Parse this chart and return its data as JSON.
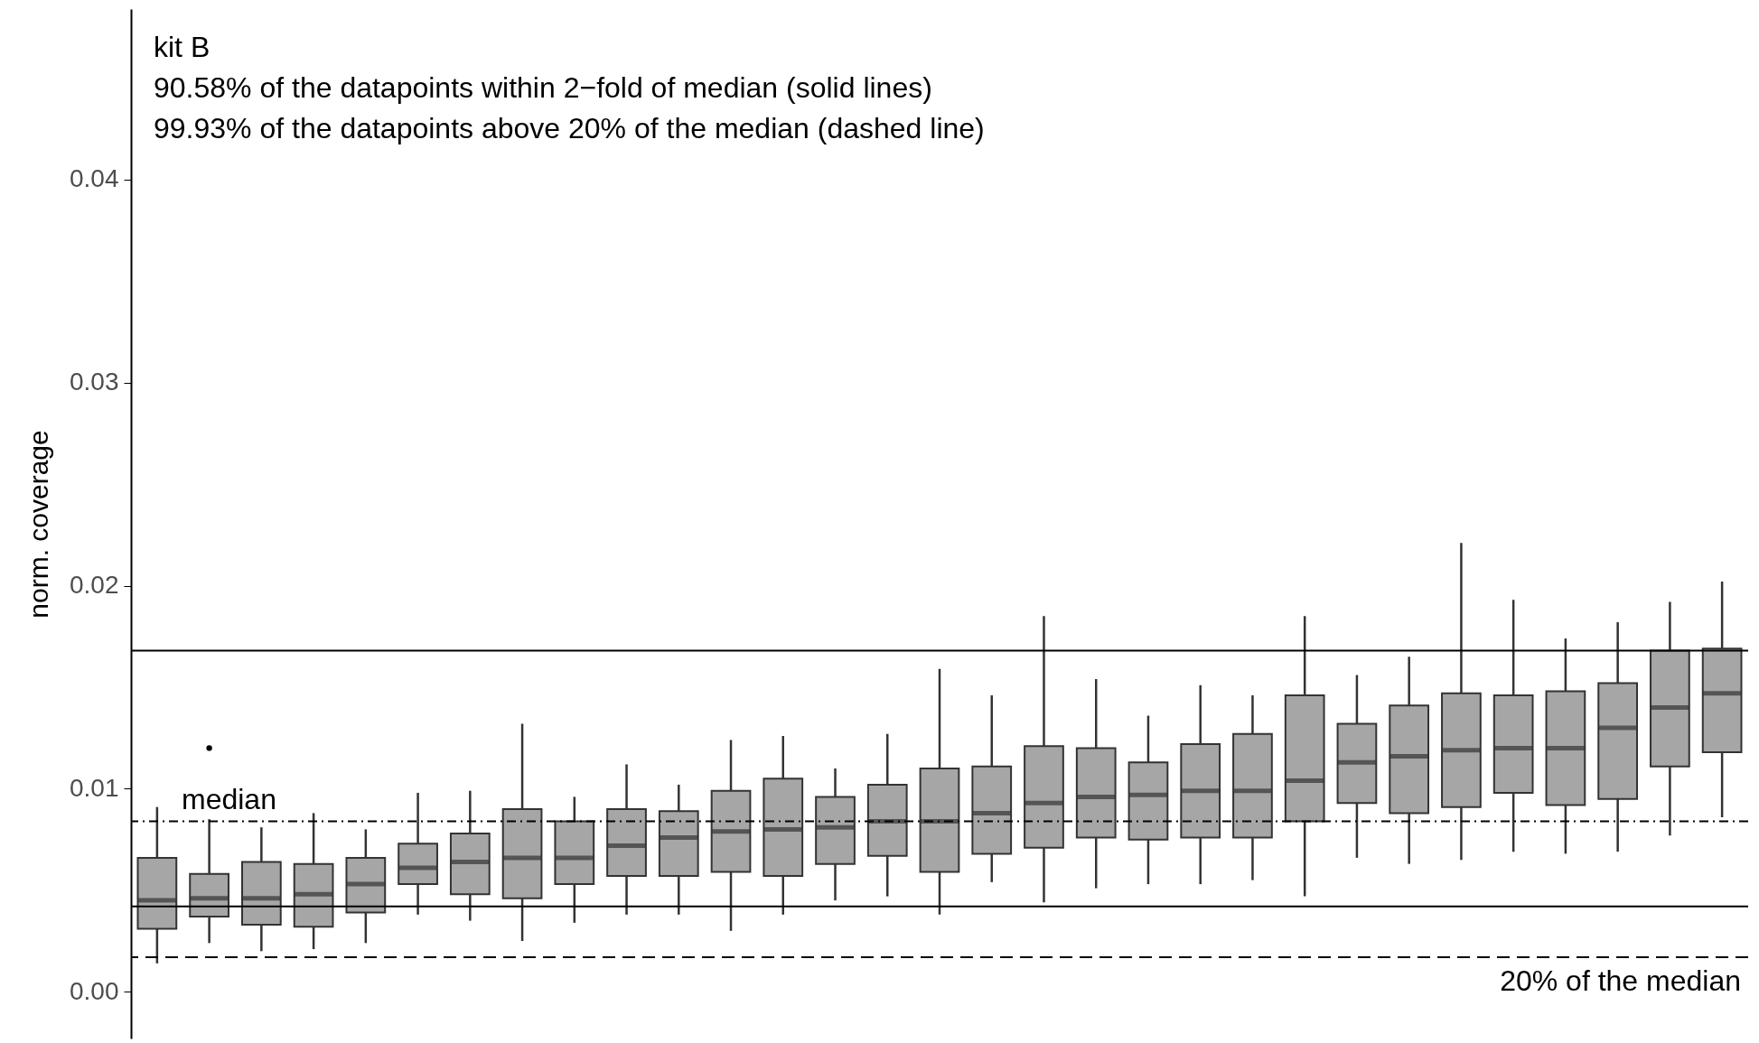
{
  "chart_data": {
    "type": "box",
    "title": "kit B",
    "annotations": [
      "90.58% of the datapoints within 2−fold of median (solid lines)",
      "99.93% of the datapoints above 20% of the median (dashed line)"
    ],
    "ylabel": "norm. coverage",
    "categories": [
      null,
      null,
      null,
      null,
      null,
      null,
      null,
      null,
      null,
      null,
      null,
      null,
      null,
      null,
      null,
      null,
      null,
      null,
      null,
      null,
      null,
      null,
      null,
      null,
      null,
      null,
      null,
      null,
      null,
      null,
      null
    ],
    "ylim": [
      -0.0023,
      0.0484
    ],
    "yticks": [
      {
        "value": 0,
        "label": "0.00"
      },
      {
        "value": 0.01,
        "label": "0.01"
      },
      {
        "value": 0.02,
        "label": "0.02"
      },
      {
        "value": 0.03,
        "label": "0.03"
      },
      {
        "value": 0.04,
        "label": "0.04"
      }
    ],
    "tick_labels": "y",
    "grid": false,
    "ref_lines": [
      {
        "axis": "y",
        "value": 0.0168,
        "line_style": "solid"
      },
      {
        "axis": "y",
        "value": 0.0084,
        "label": "median",
        "line_style": "dotted"
      },
      {
        "axis": "y",
        "value": 0.0042,
        "line_style": "solid"
      },
      {
        "axis": "y",
        "value": 0.0017,
        "label": "20% of the median",
        "line_style": "dashed"
      }
    ],
    "series": [
      {
        "color": "#a6a6a6",
        "boxes": [
          {
            "low": 0.0014,
            "q1": 0.0031,
            "median": 0.0045,
            "q3": 0.0066,
            "high": 0.0091
          },
          {
            "low": 0.0024,
            "q1": 0.0037,
            "median": 0.0046,
            "q3": 0.0058,
            "high": 0.0085,
            "outliers": [
              0.012
            ]
          },
          {
            "low": 0.002,
            "q1": 0.0033,
            "median": 0.0046,
            "q3": 0.0064,
            "high": 0.0081
          },
          {
            "low": 0.0021,
            "q1": 0.0032,
            "median": 0.0048,
            "q3": 0.0063,
            "high": 0.0088
          },
          {
            "low": 0.0024,
            "q1": 0.0039,
            "median": 0.0053,
            "q3": 0.0066,
            "high": 0.008
          },
          {
            "low": 0.0038,
            "q1": 0.0053,
            "median": 0.0061,
            "q3": 0.0073,
            "high": 0.0098
          },
          {
            "low": 0.0035,
            "q1": 0.0048,
            "median": 0.0064,
            "q3": 0.0078,
            "high": 0.0099
          },
          {
            "low": 0.0025,
            "q1": 0.0046,
            "median": 0.0066,
            "q3": 0.009,
            "high": 0.0132
          },
          {
            "low": 0.0034,
            "q1": 0.0053,
            "median": 0.0066,
            "q3": 0.0084,
            "high": 0.0096
          },
          {
            "low": 0.0038,
            "q1": 0.0057,
            "median": 0.0072,
            "q3": 0.009,
            "high": 0.0112
          },
          {
            "low": 0.0038,
            "q1": 0.0057,
            "median": 0.0076,
            "q3": 0.0089,
            "high": 0.0102
          },
          {
            "low": 0.003,
            "q1": 0.0059,
            "median": 0.0079,
            "q3": 0.0099,
            "high": 0.0124
          },
          {
            "low": 0.0038,
            "q1": 0.0057,
            "median": 0.008,
            "q3": 0.0105,
            "high": 0.0126
          },
          {
            "low": 0.0045,
            "q1": 0.0063,
            "median": 0.0081,
            "q3": 0.0096,
            "high": 0.011
          },
          {
            "low": 0.0047,
            "q1": 0.0067,
            "median": 0.0084,
            "q3": 0.0102,
            "high": 0.0127
          },
          {
            "low": 0.0038,
            "q1": 0.0059,
            "median": 0.0084,
            "q3": 0.011,
            "high": 0.0159
          },
          {
            "low": 0.0054,
            "q1": 0.0068,
            "median": 0.0088,
            "q3": 0.0111,
            "high": 0.0146
          },
          {
            "low": 0.0044,
            "q1": 0.0071,
            "median": 0.0093,
            "q3": 0.0121,
            "high": 0.0185
          },
          {
            "low": 0.0051,
            "q1": 0.0076,
            "median": 0.0096,
            "q3": 0.012,
            "high": 0.0154
          },
          {
            "low": 0.0053,
            "q1": 0.0075,
            "median": 0.0097,
            "q3": 0.0113,
            "high": 0.0136
          },
          {
            "low": 0.0053,
            "q1": 0.0076,
            "median": 0.0099,
            "q3": 0.0122,
            "high": 0.0151
          },
          {
            "low": 0.0055,
            "q1": 0.0076,
            "median": 0.0099,
            "q3": 0.0127,
            "high": 0.0146
          },
          {
            "low": 0.0047,
            "q1": 0.0084,
            "median": 0.0104,
            "q3": 0.0146,
            "high": 0.0185
          },
          {
            "low": 0.0066,
            "q1": 0.0093,
            "median": 0.0113,
            "q3": 0.0132,
            "high": 0.0156
          },
          {
            "low": 0.0063,
            "q1": 0.0088,
            "median": 0.0116,
            "q3": 0.0141,
            "high": 0.0165
          },
          {
            "low": 0.0065,
            "q1": 0.0091,
            "median": 0.0119,
            "q3": 0.0147,
            "high": 0.0221
          },
          {
            "low": 0.0069,
            "q1": 0.0098,
            "median": 0.012,
            "q3": 0.0146,
            "high": 0.0193
          },
          {
            "low": 0.0068,
            "q1": 0.0092,
            "median": 0.012,
            "q3": 0.0148,
            "high": 0.0174
          },
          {
            "low": 0.0069,
            "q1": 0.0095,
            "median": 0.013,
            "q3": 0.0152,
            "high": 0.0182
          },
          {
            "low": 0.0077,
            "q1": 0.0111,
            "median": 0.014,
            "q3": 0.0168,
            "high": 0.0192
          },
          {
            "low": 0.0086,
            "q1": 0.0118,
            "median": 0.0147,
            "q3": 0.0169,
            "high": 0.0202
          }
        ]
      }
    ]
  }
}
